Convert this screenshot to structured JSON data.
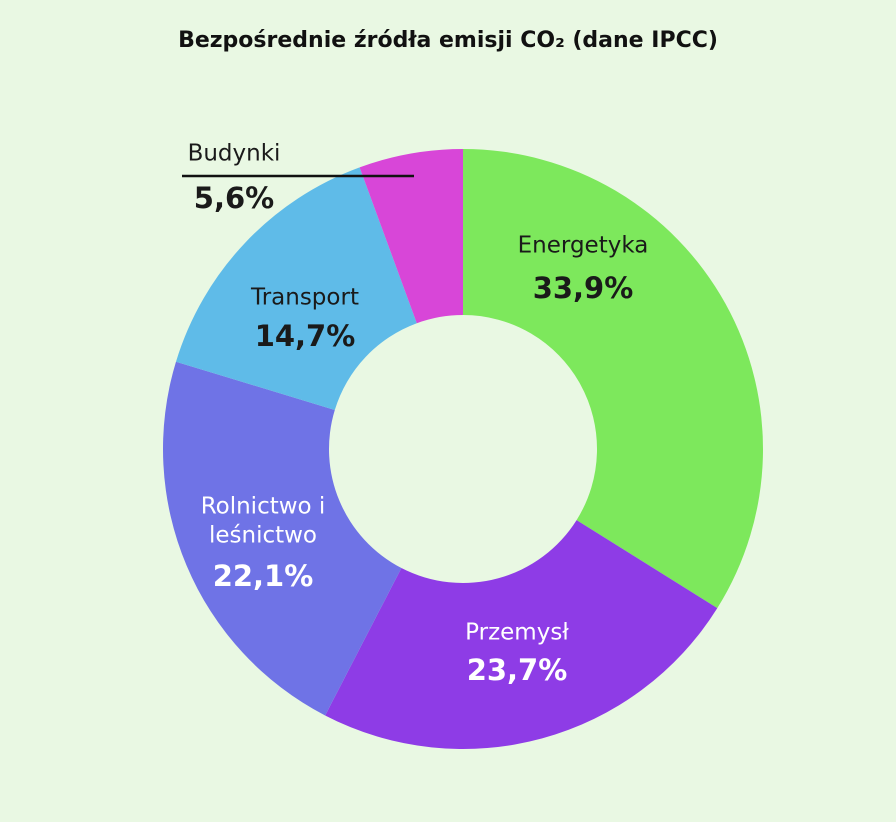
{
  "chart_data": {
    "type": "donut",
    "title": "Bezpośrednie źródła emisji CO₂ (dane IPCC)",
    "categories": [
      "Energetyka",
      "Przemysł",
      "Rolnictwo i leśnictwo",
      "Transport",
      "Budynki"
    ],
    "values": [
      33.9,
      23.7,
      22.1,
      14.7,
      5.6
    ],
    "value_labels": [
      "33,9%",
      "23,7%",
      "22,1%",
      "14,7%",
      "5,6%"
    ],
    "colors": [
      "#7de85c",
      "#8e3ce6",
      "#6f73e6",
      "#5fbbe8",
      "#d846d8"
    ]
  }
}
